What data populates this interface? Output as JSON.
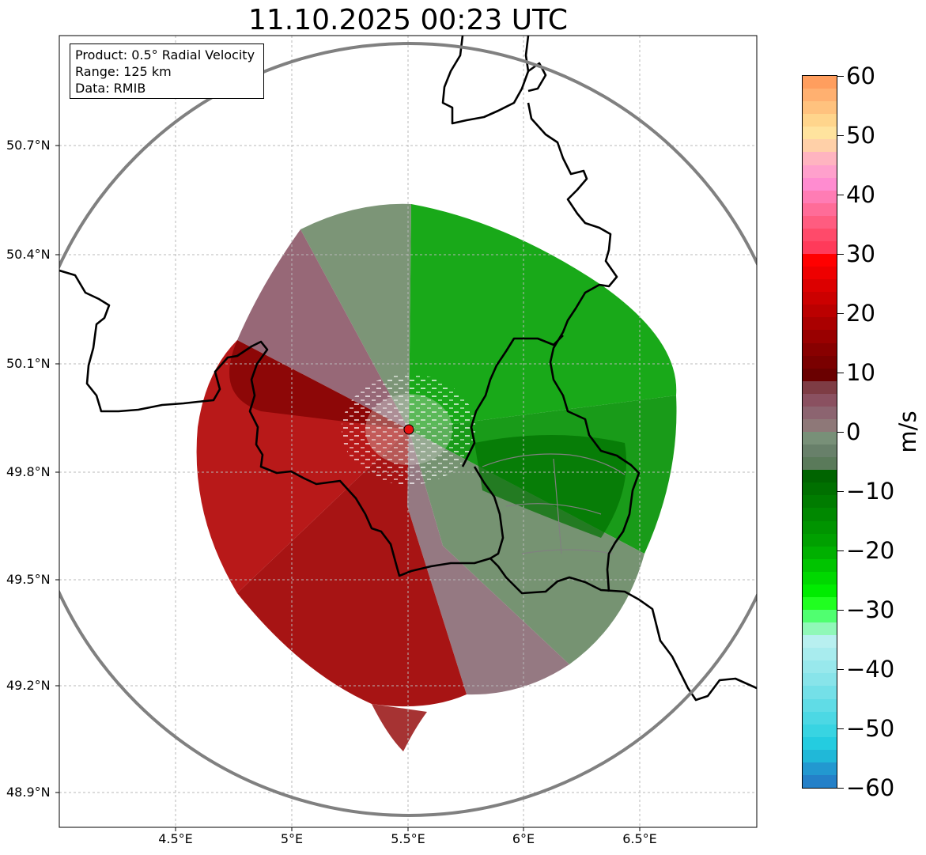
{
  "title": "11.10.2025 00:23 UTC",
  "info_box": {
    "product": "Product: 0.5° Radial Velocity",
    "range": "Range: 125 km",
    "data": "Data: RMIB"
  },
  "axes": {
    "lat_labels": [
      "50.7°N",
      "50.4°N",
      "50.1°N",
      "49.8°N",
      "49.5°N",
      "49.2°N",
      "48.9°N"
    ],
    "lon_labels": [
      "4.5°E",
      "5°E",
      "5.5°E",
      "6°E",
      "6.5°E"
    ]
  },
  "colorbar": {
    "unit": "m/s",
    "ticks": [
      "60",
      "50",
      "40",
      "30",
      "20",
      "10",
      "0",
      "−10",
      "−20",
      "−30",
      "−40",
      "−50",
      "−60"
    ],
    "colors_top_to_bottom": [
      "#ff9e5e",
      "#ffb070",
      "#ffc27e",
      "#ffd58c",
      "#ffe39e",
      "#ffd0a8",
      "#ffb4c0",
      "#ffa0cc",
      "#ff8cd0",
      "#ff7cb4",
      "#ff6c98",
      "#ff5c80",
      "#ff4a6a",
      "#ff3a5a",
      "#ff0000",
      "#ee0000",
      "#dc0000",
      "#cc0000",
      "#bb0000",
      "#aa0000",
      "#990000",
      "#880000",
      "#7a0000",
      "#6a0000",
      "#7e3c44",
      "#8a5060",
      "#8c6470",
      "#8e7878",
      "#789078",
      "#68806a",
      "#5a7a5a",
      "#006400",
      "#007000",
      "#007c00",
      "#008800",
      "#009400",
      "#00a000",
      "#00b000",
      "#00c400",
      "#00d800",
      "#00ec00",
      "#20ff20",
      "#50ff70",
      "#90f8b8",
      "#b8f0f0",
      "#a8ecee",
      "#98e8ec",
      "#88e4ea",
      "#74e0e8",
      "#60dce6",
      "#4cd8e4",
      "#38d4e2",
      "#24cce0",
      "#20b8d8",
      "#2298d0",
      "#2480c8"
    ]
  },
  "radar": {
    "site_marker": "radar-site",
    "range_ring_color": "#808080",
    "site_color": "#e81010"
  }
}
